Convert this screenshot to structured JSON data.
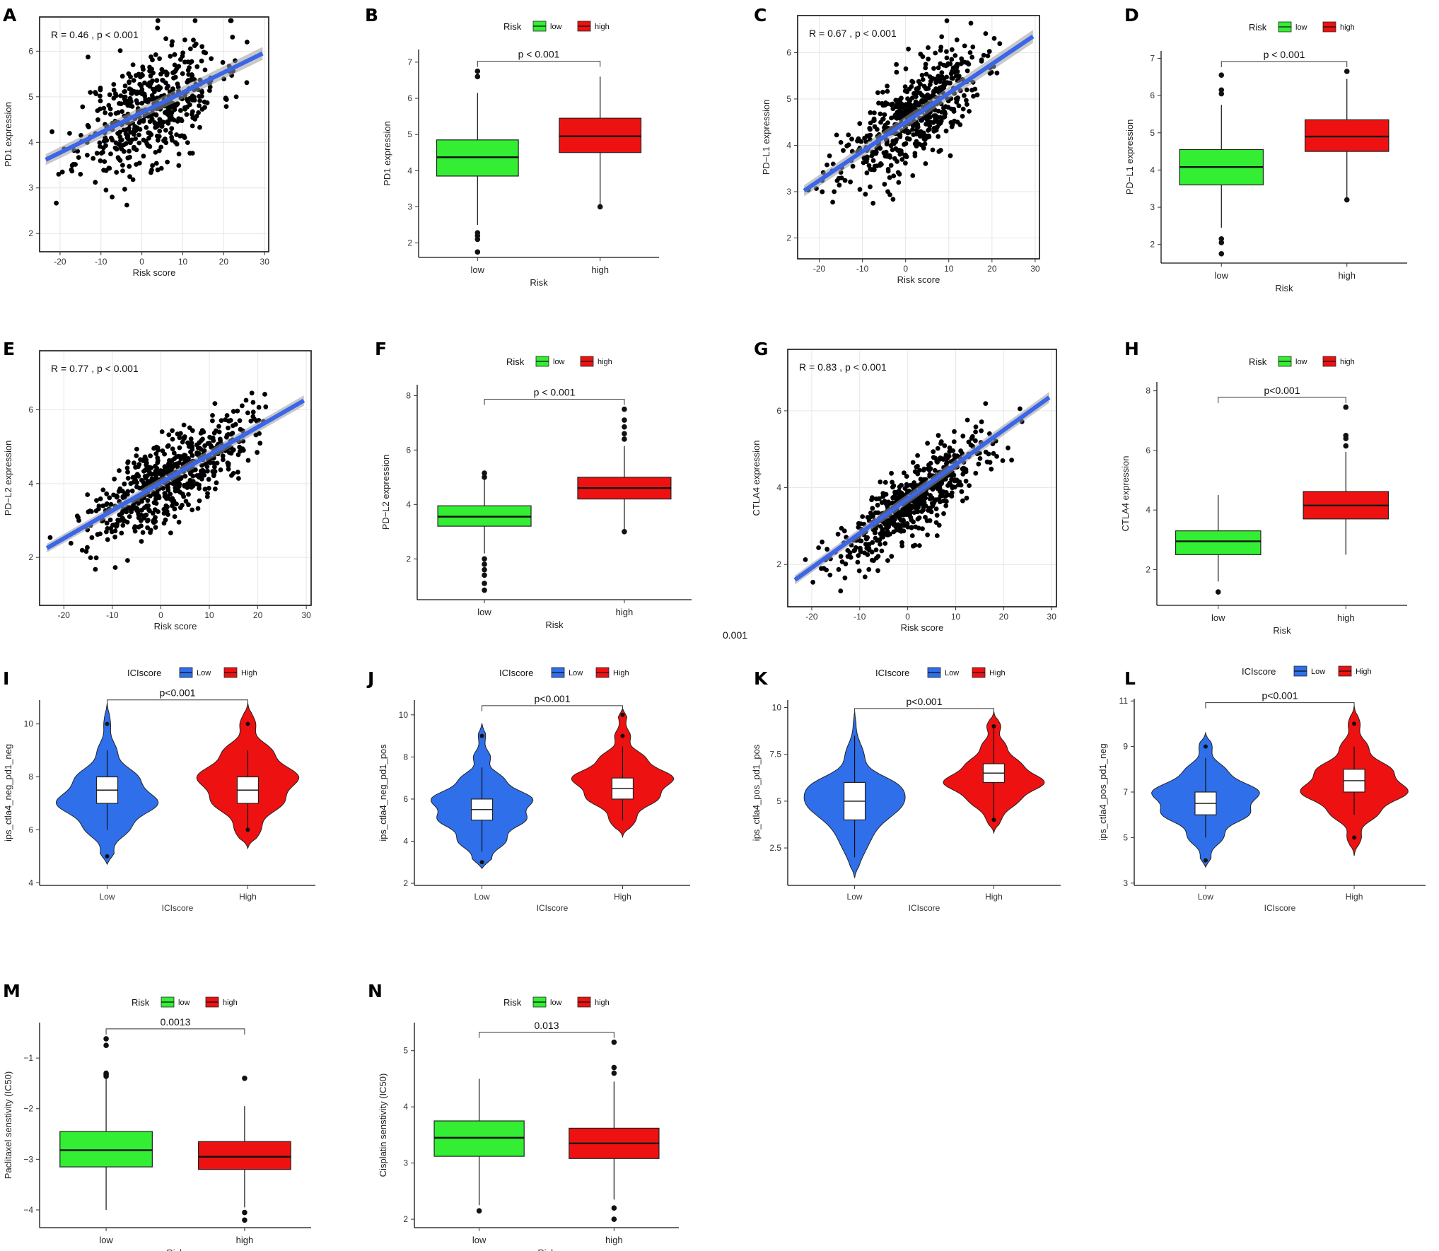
{
  "figure": {
    "stray_label": "0.001",
    "colors": {
      "low_green": "#33ee33",
      "high_red": "#ee1111",
      "low_blue": "#2f6fea",
      "regression_blue": "#3b66e8",
      "point": "#000000"
    }
  },
  "chart_data": [
    {
      "id": "A",
      "type": "scatter",
      "letter": "A",
      "xlabel": "Risk score",
      "ylabel": "PD1 expression",
      "annotation": "R = 0.46 , p < 0.001",
      "xticks": [
        -20,
        -10,
        0,
        10,
        20,
        30
      ],
      "yticks": [
        2,
        3,
        4,
        5,
        6
      ],
      "xlim": [
        -25,
        31
      ],
      "ylim": [
        1.6,
        6.75
      ],
      "fit": {
        "x": [
          -23.5,
          29.5
        ],
        "y": [
          3.62,
          5.95
        ]
      },
      "cloud": {
        "slope": 0.044,
        "intercept": 4.65,
        "sd": 0.62,
        "n": 520,
        "xmean": 2,
        "xsd": 8.5,
        "seed": 11
      }
    },
    {
      "id": "B",
      "type": "box",
      "letter": "B",
      "xlabel": "Risk",
      "ylabel": "PD1 expression",
      "legend_title": "Risk",
      "legend": [
        "low",
        "high"
      ],
      "categories": [
        "low",
        "high"
      ],
      "yticks": [
        2,
        3,
        4,
        5,
        6,
        7
      ],
      "ylim": [
        1.6,
        7.35
      ],
      "boxes": [
        {
          "group": "low",
          "q1": 3.85,
          "median": 4.37,
          "q3": 4.85,
          "whisker_low": 2.5,
          "whisker_high": 6.15,
          "outliers": [
            1.75,
            2.1,
            2.2,
            2.28,
            6.6,
            6.75
          ]
        },
        {
          "group": "high",
          "q1": 4.5,
          "median": 4.95,
          "q3": 5.45,
          "whisker_low": 3.05,
          "whisker_high": 6.6,
          "outliers": [
            3.0
          ]
        }
      ],
      "pvalue": "p < 0.001"
    },
    {
      "id": "C",
      "type": "scatter",
      "letter": "C",
      "xlabel": "Risk score",
      "ylabel": "PD−L1 expression",
      "annotation": "R = 0.67 , p < 0.001",
      "xticks": [
        -20,
        -10,
        0,
        10,
        20,
        30
      ],
      "yticks": [
        2,
        3,
        4,
        5,
        6
      ],
      "xlim": [
        -25,
        31
      ],
      "ylim": [
        1.55,
        6.8
      ],
      "fit": {
        "x": [
          -23.5,
          29.5
        ],
        "y": [
          3.02,
          6.35
        ]
      },
      "cloud": {
        "slope": 0.063,
        "intercept": 4.5,
        "sd": 0.5,
        "n": 560,
        "xmean": 1,
        "xsd": 8,
        "seed": 23
      }
    },
    {
      "id": "D",
      "type": "box",
      "letter": "D",
      "xlabel": "Risk",
      "ylabel": "PD−L1 expression",
      "legend_title": "Risk",
      "legend": [
        "low",
        "high"
      ],
      "categories": [
        "low",
        "high"
      ],
      "yticks": [
        2,
        3,
        4,
        5,
        6,
        7
      ],
      "ylim": [
        1.5,
        7.2
      ],
      "boxes": [
        {
          "group": "low",
          "q1": 3.6,
          "median": 4.08,
          "q3": 4.55,
          "whisker_low": 2.45,
          "whisker_high": 5.75,
          "outliers": [
            1.75,
            2.05,
            2.15,
            6.05,
            6.15,
            6.55
          ]
        },
        {
          "group": "high",
          "q1": 4.5,
          "median": 4.9,
          "q3": 5.35,
          "whisker_low": 3.25,
          "whisker_high": 6.45,
          "outliers": [
            3.2,
            6.65
          ]
        }
      ],
      "pvalue": "p < 0.001"
    },
    {
      "id": "E",
      "type": "scatter",
      "letter": "E",
      "xlabel": "Risk score",
      "ylabel": "PD−L2 expression",
      "annotation": "R = 0.77 , p < 0.001",
      "xticks": [
        -20,
        -10,
        0,
        10,
        20,
        30
      ],
      "yticks": [
        2,
        4,
        6
      ],
      "xlim": [
        -25,
        31
      ],
      "ylim": [
        0.7,
        7.6
      ],
      "fit": {
        "x": [
          -23.5,
          29.5
        ],
        "y": [
          2.25,
          6.25
        ]
      },
      "cloud": {
        "slope": 0.076,
        "intercept": 4.05,
        "sd": 0.55,
        "n": 600,
        "xmean": 2,
        "xsd": 8,
        "seed": 37
      }
    },
    {
      "id": "F",
      "type": "box",
      "letter": "F",
      "xlabel": "Risk",
      "ylabel": "PD−L2 expression",
      "legend_title": "Risk",
      "legend": [
        "low",
        "high"
      ],
      "categories": [
        "low",
        "high"
      ],
      "yticks": [
        2,
        4,
        6,
        8
      ],
      "ylim": [
        0.5,
        8.4
      ],
      "boxes": [
        {
          "group": "low",
          "q1": 3.2,
          "median": 3.55,
          "q3": 3.95,
          "whisker_low": 2.2,
          "whisker_high": 5.1,
          "outliers": [
            0.85,
            1.1,
            1.4,
            1.6,
            1.8,
            2.0,
            5.0,
            5.15
          ]
        },
        {
          "group": "high",
          "q1": 4.2,
          "median": 4.6,
          "q3": 5.0,
          "whisker_low": 3.05,
          "whisker_high": 6.15,
          "outliers": [
            3.0,
            6.4,
            6.6,
            6.85,
            7.1,
            7.5
          ]
        }
      ],
      "pvalue": "p < 0.001"
    },
    {
      "id": "G",
      "type": "scatter",
      "letter": "G",
      "xlabel": "Risk score",
      "ylabel": "CTLA4 expression",
      "annotation": "R = 0.83 , p < 0.001",
      "xticks": [
        -20,
        -10,
        0,
        10,
        20,
        30
      ],
      "yticks": [
        2,
        4,
        6
      ],
      "xlim": [
        -25,
        31
      ],
      "ylim": [
        0.9,
        7.6
      ],
      "fit": {
        "x": [
          -23.5,
          29.5
        ],
        "y": [
          1.6,
          6.35
        ]
      },
      "cloud": {
        "slope": 0.09,
        "intercept": 3.55,
        "sd": 0.45,
        "n": 620,
        "xmean": 1.5,
        "xsd": 8,
        "seed": 53
      }
    },
    {
      "id": "H",
      "type": "box",
      "letter": "H",
      "xlabel": "Risk",
      "ylabel": "CTLA4 expression",
      "legend_title": "Risk",
      "legend": [
        "low",
        "high"
      ],
      "categories": [
        "low",
        "high"
      ],
      "yticks": [
        2,
        4,
        6,
        8
      ],
      "ylim": [
        0.8,
        8.3
      ],
      "boxes": [
        {
          "group": "low",
          "q1": 2.5,
          "median": 2.95,
          "q3": 3.3,
          "whisker_low": 1.6,
          "whisker_high": 4.5,
          "outliers": [
            1.25
          ]
        },
        {
          "group": "high",
          "q1": 3.7,
          "median": 4.15,
          "q3": 4.62,
          "whisker_low": 2.5,
          "whisker_high": 5.95,
          "outliers": [
            6.15,
            6.4,
            6.5,
            7.45
          ]
        }
      ],
      "pvalue": "p<0.001"
    },
    {
      "id": "I",
      "type": "violin",
      "letter": "I",
      "xlabel": "ICIscore",
      "ylabel": "ips_ctla4_neg_pd1_neg",
      "legend_title": "ICIscore",
      "legend": [
        "Low",
        "High"
      ],
      "categories": [
        "Low",
        "High"
      ],
      "yticks": [
        4,
        6,
        8,
        10
      ],
      "ylim": [
        3.9,
        10.9
      ],
      "violins": [
        {
          "group": "Low",
          "min": 4.7,
          "max": 10.8,
          "modes": [
            [
              7,
              2.2,
              0.45
            ],
            [
              8,
              1.2,
              0.4
            ],
            [
              6,
              0.8,
              0.35
            ],
            [
              9,
              0.35,
              0.35
            ],
            [
              5,
              0.25,
              0.3
            ],
            [
              10,
              0.1,
              0.3
            ]
          ],
          "q1": 7,
          "median": 7.5,
          "q3": 8,
          "whisker_low": 6,
          "whisker_high": 9,
          "points": [
            5,
            10
          ]
        },
        {
          "group": "High",
          "min": 5.3,
          "max": 10.8,
          "modes": [
            [
              8,
              2.2,
              0.45
            ],
            [
              7,
              1.4,
              0.4
            ],
            [
              9,
              0.9,
              0.35
            ],
            [
              6,
              0.5,
              0.35
            ],
            [
              10,
              0.3,
              0.3
            ]
          ],
          "q1": 7,
          "median": 7.5,
          "q3": 8,
          "whisker_low": 6,
          "whisker_high": 9,
          "points": [
            6,
            10
          ]
        }
      ],
      "pvalue": "p<0.001"
    },
    {
      "id": "J",
      "type": "violin",
      "letter": "J",
      "xlabel": "ICIscore",
      "ylabel": "ips_ctla4_neg_pd1_pos",
      "legend_title": "ICIscore",
      "legend": [
        "Low",
        "High"
      ],
      "categories": [
        "Low",
        "High"
      ],
      "yticks": [
        2,
        4,
        6,
        8,
        10
      ],
      "ylim": [
        1.9,
        10.7
      ],
      "violins": [
        {
          "group": "Low",
          "min": 2.7,
          "max": 9.6,
          "modes": [
            [
              6,
              2.0,
              0.45
            ],
            [
              5,
              1.6,
              0.4
            ],
            [
              4,
              0.9,
              0.4
            ],
            [
              7,
              0.7,
              0.35
            ],
            [
              3,
              0.3,
              0.3
            ],
            [
              8,
              0.3,
              0.3
            ],
            [
              9,
              0.1,
              0.3
            ]
          ],
          "q1": 5,
          "median": 5.5,
          "q3": 6,
          "whisker_low": 3.5,
          "whisker_high": 7.5,
          "points": [
            3,
            9
          ]
        },
        {
          "group": "High",
          "min": 4.2,
          "max": 10.3,
          "modes": [
            [
              7,
              2.2,
              0.45
            ],
            [
              6,
              1.4,
              0.4
            ],
            [
              8,
              0.8,
              0.35
            ],
            [
              5,
              0.5,
              0.35
            ],
            [
              9,
              0.3,
              0.3
            ],
            [
              10,
              0.15,
              0.3
            ]
          ],
          "q1": 6,
          "median": 6.5,
          "q3": 7,
          "whisker_low": 5,
          "whisker_high": 8.5,
          "points": [
            9,
            10
          ]
        }
      ],
      "pvalue": "p<0.001"
    },
    {
      "id": "K",
      "type": "violin",
      "letter": "K",
      "xlabel": "ICIscore",
      "ylabel": "ips_ctla4_pos_pd1_pos",
      "legend_title": "ICIscore",
      "legend": [
        "Low",
        "High"
      ],
      "categories": [
        "Low",
        "High"
      ],
      "yticks": [
        2.5,
        5.0,
        7.5,
        10.0
      ],
      "ylim": [
        0.5,
        10.4
      ],
      "violins": [
        {
          "group": "Low",
          "min": 0.9,
          "max": 9.8,
          "modes": [
            [
              5,
              1.9,
              0.9
            ],
            [
              6,
              0.6,
              0.5
            ],
            [
              3,
              0.5,
              0.9
            ],
            [
              7.5,
              0.3,
              0.6
            ]
          ],
          "q1": 4,
          "median": 5,
          "q3": 6,
          "whisker_low": 2,
          "whisker_high": 8.5,
          "points": []
        },
        {
          "group": "High",
          "min": 3.3,
          "max": 9.8,
          "modes": [
            [
              6,
              2.0,
              0.45
            ],
            [
              7,
              1.0,
              0.45
            ],
            [
              5,
              0.9,
              0.45
            ],
            [
              8,
              0.4,
              0.35
            ],
            [
              9,
              0.25,
              0.3
            ],
            [
              4,
              0.2,
              0.35
            ]
          ],
          "q1": 6,
          "median": 6.5,
          "q3": 7,
          "whisker_low": 4,
          "whisker_high": 9,
          "points": [
            4,
            9
          ]
        }
      ],
      "pvalue": "p<0.001"
    },
    {
      "id": "L",
      "type": "violin",
      "letter": "L",
      "xlabel": "ICIscore",
      "ylabel": "ips_ctla4_pos_pd1_neg",
      "legend_title": "ICIscore",
      "legend": [
        "Low",
        "High"
      ],
      "categories": [
        "Low",
        "High"
      ],
      "yticks": [
        3,
        5,
        7,
        9,
        11
      ],
      "ylim": [
        2.9,
        11.1
      ],
      "violins": [
        {
          "group": "Low",
          "min": 3.7,
          "max": 9.6,
          "modes": [
            [
              7,
              2.0,
              0.45
            ],
            [
              6,
              1.5,
              0.4
            ],
            [
              5,
              0.6,
              0.35
            ],
            [
              8,
              0.6,
              0.35
            ],
            [
              4,
              0.15,
              0.3
            ],
            [
              9,
              0.2,
              0.3
            ]
          ],
          "q1": 6,
          "median": 6.5,
          "q3": 7,
          "whisker_low": 5,
          "whisker_high": 8.5,
          "points": [
            4,
            9
          ]
        },
        {
          "group": "High",
          "min": 4.2,
          "max": 10.8,
          "modes": [
            [
              7,
              2.2,
              0.45
            ],
            [
              8,
              1.4,
              0.4
            ],
            [
              6,
              0.8,
              0.35
            ],
            [
              9,
              0.5,
              0.35
            ],
            [
              5,
              0.25,
              0.3
            ],
            [
              10,
              0.2,
              0.3
            ]
          ],
          "q1": 7,
          "median": 7.5,
          "q3": 8,
          "whisker_low": 6,
          "whisker_high": 9,
          "points": [
            5,
            10
          ]
        }
      ],
      "pvalue": "p<0.001"
    },
    {
      "id": "M",
      "type": "box",
      "letter": "M",
      "xlabel": "Risk",
      "ylabel": "Paclitaxel senstivity (IC50)",
      "legend_title": "Risk",
      "legend": [
        "low",
        "high"
      ],
      "categories": [
        "low",
        "high"
      ],
      "yticks": [
        -4,
        -3,
        -2,
        -1
      ],
      "ytick_labels": [
        "−4",
        "−3",
        "−2",
        "−1"
      ],
      "ylim": [
        -4.35,
        -0.3
      ],
      "boxes": [
        {
          "group": "low",
          "q1": -3.15,
          "median": -2.82,
          "q3": -2.45,
          "whisker_low": -4.0,
          "whisker_high": -1.4,
          "outliers": [
            -0.62,
            -0.75,
            -1.3,
            -1.33,
            -1.36
          ]
        },
        {
          "group": "high",
          "q1": -3.2,
          "median": -2.95,
          "q3": -2.65,
          "whisker_low": -3.95,
          "whisker_high": -1.95,
          "outliers": [
            -1.4,
            -4.05,
            -4.2
          ]
        }
      ],
      "pvalue": "0.0013"
    },
    {
      "id": "N",
      "type": "box",
      "letter": "N",
      "xlabel": "Risk",
      "ylabel": "Cisplatin senstivity (IC50)",
      "legend_title": "Risk",
      "legend": [
        "low",
        "high"
      ],
      "categories": [
        "low",
        "high"
      ],
      "yticks": [
        2,
        3,
        4,
        5
      ],
      "ylim": [
        1.85,
        5.5
      ],
      "boxes": [
        {
          "group": "low",
          "q1": 3.12,
          "median": 3.45,
          "q3": 3.75,
          "whisker_low": 2.25,
          "whisker_high": 4.5,
          "outliers": [
            2.15
          ]
        },
        {
          "group": "high",
          "q1": 3.08,
          "median": 3.35,
          "q3": 3.62,
          "whisker_low": 2.35,
          "whisker_high": 4.45,
          "outliers": [
            2.0,
            2.2,
            4.6,
            4.7,
            5.15
          ]
        }
      ],
      "pvalue": "0.013"
    }
  ]
}
